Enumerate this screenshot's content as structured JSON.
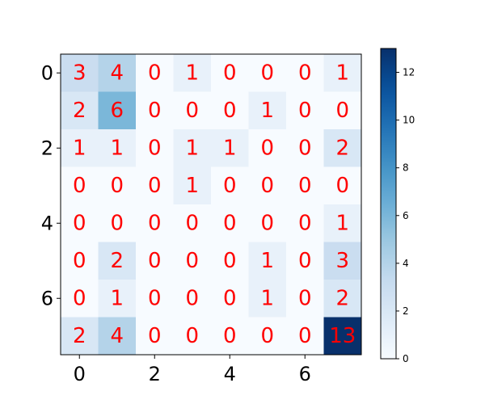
{
  "chart_data": {
    "type": "heatmap",
    "rows": 8,
    "cols": 8,
    "values": [
      [
        3,
        4,
        0,
        1,
        0,
        0,
        0,
        1
      ],
      [
        2,
        6,
        0,
        0,
        0,
        1,
        0,
        0
      ],
      [
        1,
        1,
        0,
        1,
        1,
        0,
        0,
        2
      ],
      [
        0,
        0,
        0,
        1,
        0,
        0,
        0,
        0
      ],
      [
        0,
        0,
        0,
        0,
        0,
        0,
        0,
        1
      ],
      [
        0,
        2,
        0,
        0,
        0,
        1,
        0,
        3
      ],
      [
        0,
        1,
        0,
        0,
        0,
        1,
        0,
        2
      ],
      [
        2,
        4,
        0,
        0,
        0,
        0,
        0,
        13
      ]
    ],
    "x_ticks": [
      "0",
      "2",
      "4",
      "6"
    ],
    "y_ticks": [
      "0",
      "2",
      "4",
      "6"
    ],
    "colorbar": {
      "min": 0,
      "max": 13,
      "ticks": [
        "0",
        "2",
        "4",
        "6",
        "8",
        "10",
        "12"
      ],
      "colormap": "Blues"
    },
    "annotation_color": "#ff0000",
    "grid": false,
    "legend": "colorbar-right"
  }
}
